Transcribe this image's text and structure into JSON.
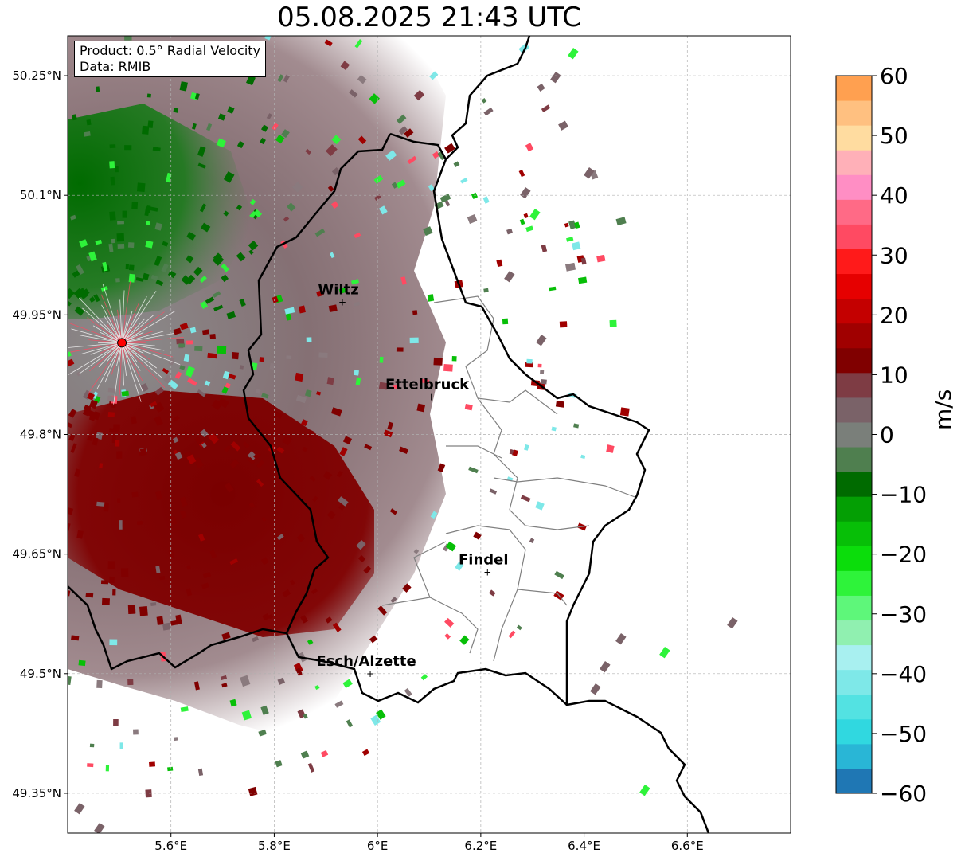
{
  "title": "05.08.2025 21:43 UTC",
  "info": {
    "product": "Product: 0.5° Radial Velocity",
    "data": "Data: RMIB"
  },
  "map": {
    "lon_range": [
      5.4,
      6.8
    ],
    "lat_range": [
      49.3,
      50.3
    ],
    "lon_ticks": [
      {
        "v": 5.6,
        "label": "5.6°E"
      },
      {
        "v": 5.8,
        "label": "5.8°E"
      },
      {
        "v": 6.0,
        "label": "6°E"
      },
      {
        "v": 6.2,
        "label": "6.2°E"
      },
      {
        "v": 6.4,
        "label": "6.4°E"
      },
      {
        "v": 6.6,
        "label": "6.6°E"
      }
    ],
    "lat_ticks": [
      {
        "v": 49.35,
        "label": "49.35°N"
      },
      {
        "v": 49.5,
        "label": "49.5°N"
      },
      {
        "v": 49.65,
        "label": "49.65°N"
      },
      {
        "v": 49.8,
        "label": "49.8°N"
      },
      {
        "v": 49.95,
        "label": "49.95°N"
      },
      {
        "v": 50.1,
        "label": "50.1°N"
      },
      {
        "v": 50.25,
        "label": "50.25°N"
      }
    ],
    "grid": true,
    "radar_site": {
      "lon": 5.505,
      "lat": 49.915
    },
    "cities": [
      {
        "name": "Wiltz",
        "lon": 5.932,
        "lat": 49.966
      },
      {
        "name": "Ettelbruck",
        "lon": 6.104,
        "lat": 49.847
      },
      {
        "name": "Findel",
        "lon": 6.213,
        "lat": 49.627
      },
      {
        "name": "Esch/Alzette",
        "lon": 5.986,
        "lat": 49.5
      }
    ]
  },
  "colorbar": {
    "unit": "m/s",
    "range": [
      -60,
      60
    ],
    "ticks": [
      "60",
      "50",
      "40",
      "30",
      "20",
      "10",
      "0",
      "−10",
      "−20",
      "−30",
      "−40",
      "−50",
      "−60"
    ],
    "colors": [
      "#1f77b4",
      "#29b6d6",
      "#30d8e0",
      "#53e2e2",
      "#7ee8e8",
      "#a8f0f0",
      "#90f0b0",
      "#5ef77a",
      "#2ef33a",
      "#0bdd0b",
      "#07bf07",
      "#049f04",
      "#006b00",
      "#4f7f4f",
      "#7a7f7a",
      "#7a6268",
      "#7e3c44",
      "#800000",
      "#a00000",
      "#c40000",
      "#e60000",
      "#ff1a1a",
      "#ff4a62",
      "#ff6a86",
      "#ff8ec4",
      "#ffb0b8",
      "#ffdca0",
      "#ffc080",
      "#ffa050"
    ],
    "colors_key": "sampled from bottom (−60) to top (60)"
  }
}
